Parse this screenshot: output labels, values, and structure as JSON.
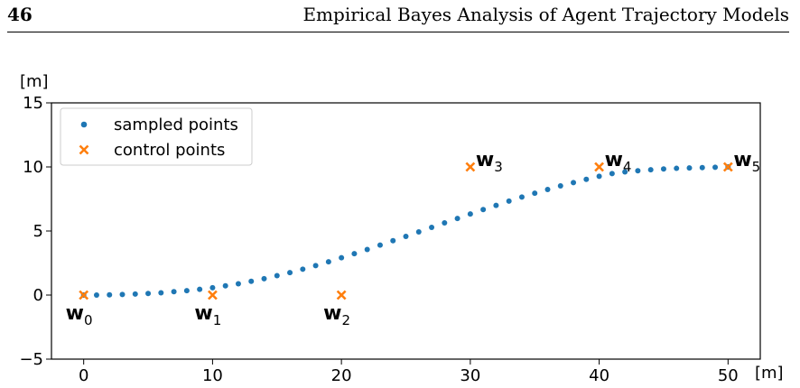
{
  "header": {
    "page_number": "46",
    "running_title": "Empirical Bayes Analysis of Agent Trajectory Models"
  },
  "chart_data": {
    "type": "scatter",
    "xlabel": "[m]",
    "ylabel": "[m]",
    "xlim": [
      -2.5,
      52.5
    ],
    "ylim": [
      -5,
      15
    ],
    "xticks": [
      0,
      10,
      20,
      30,
      40,
      50
    ],
    "yticks": [
      -5,
      0,
      5,
      10,
      15
    ],
    "legend_position": "top-left",
    "grid": false,
    "colors": {
      "sampled": "#1f77b4",
      "control": "#ff7f0e"
    },
    "series": [
      {
        "name": "sampled points",
        "marker": "dot",
        "x": [
          0,
          1,
          2,
          3,
          4,
          5,
          6,
          7,
          8,
          9,
          10,
          11,
          12,
          13,
          14,
          15,
          16,
          17,
          18,
          19,
          20,
          21,
          22,
          23,
          24,
          25,
          26,
          27,
          28,
          29,
          30,
          31,
          32,
          33,
          34,
          35,
          36,
          37,
          38,
          39,
          40,
          41,
          42,
          43,
          44,
          45,
          46,
          47,
          48,
          49,
          50
        ],
        "y": [
          0,
          0,
          0.02,
          0.04,
          0.08,
          0.12,
          0.18,
          0.26,
          0.34,
          0.45,
          0.57,
          0.72,
          0.88,
          1.07,
          1.28,
          1.51,
          1.75,
          2.02,
          2.3,
          2.6,
          2.91,
          3.23,
          3.56,
          3.9,
          4.24,
          4.58,
          4.93,
          5.28,
          5.63,
          5.98,
          6.33,
          6.67,
          7.0,
          7.33,
          7.65,
          7.95,
          8.24,
          8.52,
          8.78,
          9.03,
          9.27,
          9.48,
          9.61,
          9.7,
          9.78,
          9.84,
          9.89,
          9.92,
          9.95,
          9.97,
          10.0
        ]
      },
      {
        "name": "control points",
        "marker": "x",
        "x": [
          0,
          10,
          20,
          30,
          40,
          50
        ],
        "y": [
          0,
          0,
          0,
          10,
          10,
          10
        ],
        "labels": [
          {
            "base": "w",
            "sub": "0"
          },
          {
            "base": "w",
            "sub": "1"
          },
          {
            "base": "w",
            "sub": "2"
          },
          {
            "base": "w",
            "sub": "3"
          },
          {
            "base": "w",
            "sub": "4"
          },
          {
            "base": "w",
            "sub": "5"
          }
        ]
      }
    ]
  }
}
